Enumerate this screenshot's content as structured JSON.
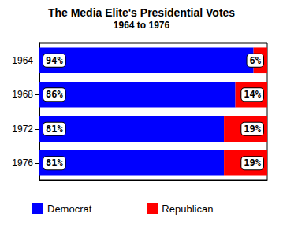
{
  "chart_data": {
    "type": "bar",
    "title": "The Media Elite's Presidential Votes",
    "subtitle": "1964 to 1976",
    "orientation": "horizontal",
    "stacked": true,
    "categories": [
      "1964",
      "1968",
      "1972",
      "1976"
    ],
    "series": [
      {
        "name": "Democrat",
        "color": "#0000ff",
        "values": [
          94,
          86,
          81,
          81
        ],
        "value_labels": [
          "94%",
          "86%",
          "81%",
          "81%"
        ]
      },
      {
        "name": "Republican",
        "color": "#ff0000",
        "values": [
          6,
          14,
          19,
          19
        ],
        "value_labels": [
          "6%",
          "14%",
          "19%",
          "19%"
        ]
      }
    ],
    "xlim": [
      0,
      100
    ],
    "data_labels": true,
    "tick_labels": "y",
    "legend": "bottom",
    "grid": false
  }
}
